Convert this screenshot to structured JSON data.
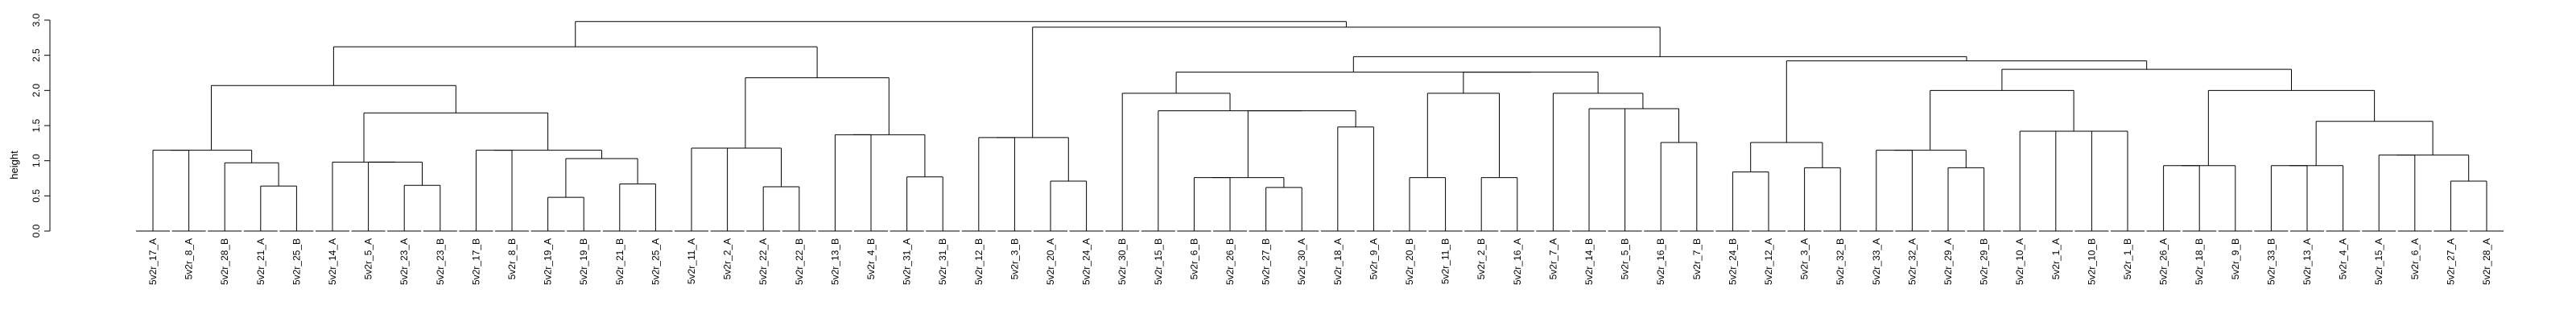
{
  "chart_data": {
    "type": "dendrogram",
    "title": "",
    "xlabel": "",
    "ylabel": "height",
    "ylim": [
      0,
      3.0
    ],
    "yticks": [
      "0.0",
      "0.5",
      "1.0",
      "1.5",
      "2.0",
      "2.5",
      "3.0"
    ],
    "grid": false,
    "leaves": [
      "5v2r_17_A",
      "5v2r_8_A",
      "5v2r_28_B",
      "5v2r_21_A",
      "5v2r_25_B",
      "5v2r_14_A",
      "5v2r_5_A",
      "5v2r_23_A",
      "5v2r_23_B",
      "5v2r_17_B",
      "5v2r_8_B",
      "5v2r_19_A",
      "5v2r_19_B",
      "5v2r_21_B",
      "5v2r_25_A",
      "5v2r_11_A",
      "5v2r_2_A",
      "5v2r_22_A",
      "5v2r_22_B",
      "5v2r_13_B",
      "5v2r_4_B",
      "5v2r_31_A",
      "5v2r_31_B",
      "5v2r_12_B",
      "5v2r_3_B",
      "5v2r_20_A",
      "5v2r_24_A",
      "5v2r_30_B",
      "5v2r_15_B",
      "5v2r_6_B",
      "5v2r_26_B",
      "5v2r_27_B",
      "5v2r_30_A",
      "5v2r_18_A",
      "5v2r_9_A",
      "5v2r_20_B",
      "5v2r_11_B",
      "5v2r_2_B",
      "5v2r_16_A",
      "5v2r_7_A",
      "5v2r_14_B",
      "5v2r_5_B",
      "5v2r_16_B",
      "5v2r_7_B",
      "5v2r_24_B",
      "5v2r_12_A",
      "5v2r_3_A",
      "5v2r_32_B",
      "5v2r_33_A",
      "5v2r_32_A",
      "5v2r_29_A",
      "5v2r_29_B",
      "5v2r_10_A",
      "5v2r_1_A",
      "5v2r_10_B",
      "5v2r_1_B",
      "5v2r_26_A",
      "5v2r_18_B",
      "5v2r_9_B",
      "5v2r_33_B",
      "5v2r_13_A",
      "5v2r_4_A",
      "5v2r_15_A",
      "5v2r_6_A",
      "5v2r_27_A",
      "5v2r_28_A"
    ],
    "merges": [
      {
        "id": 1,
        "left": "L0",
        "right": "L1",
        "height": 1.15
      },
      {
        "id": 2,
        "left": "L3",
        "right": "L4",
        "height": 0.64
      },
      {
        "id": 3,
        "left": "L2",
        "right": "N2",
        "height": 0.97
      },
      {
        "id": 4,
        "left": "N1",
        "right": "N3",
        "height": 1.15
      },
      {
        "id": 5,
        "left": "L7",
        "right": "L8",
        "height": 0.65
      },
      {
        "id": 6,
        "left": "L6",
        "right": "N5",
        "height": 0.98
      },
      {
        "id": 7,
        "left": "L5",
        "right": "N6",
        "height": 0.98
      },
      {
        "id": 8,
        "left": "L9",
        "right": "L10",
        "height": 1.15
      },
      {
        "id": 9,
        "left": "L11",
        "right": "L12",
        "height": 0.48
      },
      {
        "id": 10,
        "left": "L13",
        "right": "L14",
        "height": 0.67
      },
      {
        "id": 11,
        "left": "N9",
        "right": "N10",
        "height": 1.03
      },
      {
        "id": 12,
        "left": "N8",
        "right": "N11",
        "height": 1.15
      },
      {
        "id": 13,
        "left": "N7",
        "right": "N12",
        "height": 1.68
      },
      {
        "id": 14,
        "left": "N4",
        "right": "N13",
        "height": 2.07
      },
      {
        "id": 15,
        "left": "L15",
        "right": "L16",
        "height": 1.18
      },
      {
        "id": 16,
        "left": "L17",
        "right": "L18",
        "height": 0.63
      },
      {
        "id": 17,
        "left": "N15",
        "right": "N16",
        "height": 1.18
      },
      {
        "id": 18,
        "left": "L19",
        "right": "L20",
        "height": 1.37
      },
      {
        "id": 19,
        "left": "L21",
        "right": "L22",
        "height": 0.77
      },
      {
        "id": 20,
        "left": "N18",
        "right": "N19",
        "height": 1.37
      },
      {
        "id": 21,
        "left": "N17",
        "right": "N20",
        "height": 2.18
      },
      {
        "id": 22,
        "left": "N14",
        "right": "N21",
        "height": 2.62
      },
      {
        "id": 23,
        "left": "L23",
        "right": "L24",
        "height": 1.33
      },
      {
        "id": 24,
        "left": "L25",
        "right": "L26",
        "height": 0.71
      },
      {
        "id": 25,
        "left": "N23",
        "right": "N24",
        "height": 1.33
      },
      {
        "id": 26,
        "left": "L29",
        "right": "L30",
        "height": 0.76
      },
      {
        "id": 27,
        "left": "L31",
        "right": "L32",
        "height": 0.62
      },
      {
        "id": 28,
        "left": "N26",
        "right": "N27",
        "height": 0.76
      },
      {
        "id": 29,
        "left": "L33",
        "right": "L34",
        "height": 1.48
      },
      {
        "id": 30,
        "left": "N28",
        "right": "N29",
        "height": 1.71
      },
      {
        "id": 31,
        "left": "L28",
        "right": "N30",
        "height": 1.71
      },
      {
        "id": 32,
        "left": "L27",
        "right": "N31",
        "height": 1.96
      },
      {
        "id": 33,
        "left": "L35",
        "right": "L36",
        "height": 0.76
      },
      {
        "id": 34,
        "left": "L37",
        "right": "L38",
        "height": 0.76
      },
      {
        "id": 35,
        "left": "L40",
        "right": "L41",
        "height": 1.74
      },
      {
        "id": 36,
        "left": "L42",
        "right": "L43",
        "height": 1.26
      },
      {
        "id": 37,
        "left": "N35",
        "right": "N36",
        "height": 1.74
      },
      {
        "id": 38,
        "left": "L39",
        "right": "N37",
        "height": 1.96
      },
      {
        "id": 39,
        "left": "N33",
        "right": "N34",
        "height": 1.96
      },
      {
        "id": 40,
        "left": "N39",
        "right": "N38",
        "height": 2.26
      },
      {
        "id": 41,
        "left": "N32",
        "right": "N40",
        "height": 2.26
      },
      {
        "id": 42,
        "left": "L44",
        "right": "L45",
        "height": 0.84
      },
      {
        "id": 43,
        "left": "L46",
        "right": "L47",
        "height": 0.9
      },
      {
        "id": 44,
        "left": "N42",
        "right": "N43",
        "height": 1.26
      },
      {
        "id": 45,
        "left": "L48",
        "right": "L49",
        "height": 1.15
      },
      {
        "id": 46,
        "left": "L50",
        "right": "L51",
        "height": 0.9
      },
      {
        "id": 47,
        "left": "N45",
        "right": "N46",
        "height": 1.15
      },
      {
        "id": 48,
        "left": "L52",
        "right": "L53",
        "height": 1.42
      },
      {
        "id": 49,
        "left": "L54",
        "right": "L55",
        "height": 1.42
      },
      {
        "id": 50,
        "left": "N48",
        "right": "N49",
        "height": 1.42
      },
      {
        "id": 51,
        "left": "N47",
        "right": "N50",
        "height": 2.0
      },
      {
        "id": 52,
        "left": "L56",
        "right": "L57",
        "height": 0.93
      },
      {
        "id": 53,
        "left": "N52",
        "right": "L58",
        "height": 0.93
      },
      {
        "id": 54,
        "left": "L59",
        "right": "L60",
        "height": 0.93
      },
      {
        "id": 55,
        "left": "N54",
        "right": "L61",
        "height": 0.93
      },
      {
        "id": 56,
        "left": "L62",
        "right": "L63",
        "height": 1.08
      },
      {
        "id": 57,
        "left": "L64",
        "right": "L65",
        "height": 0.71
      },
      {
        "id": 58,
        "left": "N56",
        "right": "N57",
        "height": 1.08
      },
      {
        "id": 59,
        "left": "N55",
        "right": "N58",
        "height": 1.56
      },
      {
        "id": 60,
        "left": "N53",
        "right": "N59",
        "height": 2.0
      },
      {
        "id": 61,
        "left": "N51",
        "right": "N60",
        "height": 2.3
      },
      {
        "id": 62,
        "left": "N44",
        "right": "N61",
        "height": 2.42
      },
      {
        "id": 63,
        "left": "N41",
        "right": "N62",
        "height": 2.48
      },
      {
        "id": 64,
        "left": "N25",
        "right": "N63",
        "height": 2.9
      },
      {
        "id": 65,
        "left": "N22",
        "right": "N64",
        "height": 2.98
      }
    ]
  }
}
